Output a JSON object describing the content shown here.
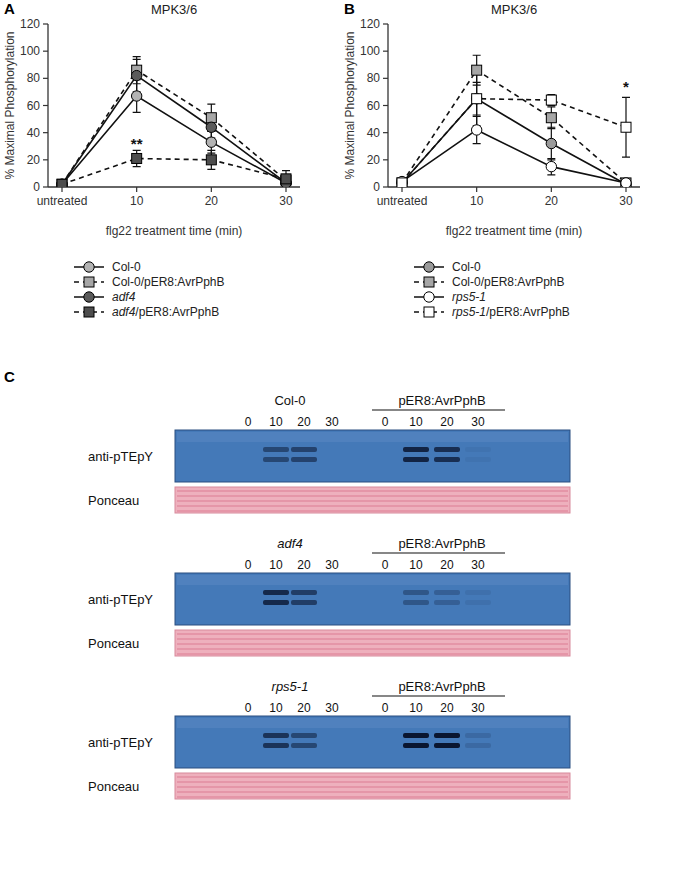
{
  "panels": [
    "A",
    "B",
    "C"
  ],
  "chart_data": [
    {
      "type": "line",
      "title": "MPK3/6",
      "x_label": "flg22 treatment time (min)",
      "y_label": "% Maximal Phosphorylation",
      "categories": [
        "untreated",
        "10",
        "20",
        "30"
      ],
      "ylim": [
        0,
        120
      ],
      "yticks": [
        0,
        20,
        40,
        60,
        80,
        100,
        120
      ],
      "grid": false,
      "legend": "bottom",
      "series": [
        {
          "name": "Col-0",
          "color": "#b3b3b3",
          "marker": "circle",
          "line_style": "solid",
          "values": [
            2,
            67,
            33,
            3
          ],
          "errors": [
            1,
            12,
            8,
            2
          ]
        },
        {
          "name": "Col-0/pER8:AvrPphB",
          "color": "#a6a6a6",
          "marker": "square",
          "line_style": "dashed",
          "values": [
            2,
            86,
            51,
            5
          ],
          "errors": [
            1,
            10,
            10,
            3
          ]
        },
        {
          "name": "adf4",
          "color": "#5a5a5a",
          "marker": "circle",
          "line_style": "solid",
          "values": [
            2,
            82,
            44,
            3
          ],
          "errors": [
            1,
            12,
            8,
            2
          ]
        },
        {
          "name": "adf4/pER8:AvrPphB",
          "color": "#4d4d4d",
          "marker": "square",
          "line_style": "dashed",
          "values": [
            2,
            21,
            20,
            6
          ],
          "errors": [
            1,
            6,
            7,
            6
          ]
        }
      ],
      "annotations": [
        {
          "text": "**",
          "category": "10",
          "y": 28
        }
      ]
    },
    {
      "type": "line",
      "title": "MPK3/6",
      "x_label": "flg22 treatment time (min)",
      "y_label": "% Maximal Phosphorylation",
      "categories": [
        "untreated",
        "10",
        "20",
        "30"
      ],
      "ylim": [
        0,
        120
      ],
      "yticks": [
        0,
        20,
        40,
        60,
        80,
        100,
        120
      ],
      "grid": false,
      "legend": "bottom",
      "series": [
        {
          "name": "Col-0",
          "color": "#9a9a9a",
          "marker": "circle",
          "line_style": "solid",
          "values": [
            3,
            65,
            32,
            2
          ],
          "errors": [
            2,
            12,
            12,
            2
          ]
        },
        {
          "name": "Col-0/pER8:AvrPphB",
          "color": "#a6a6a6",
          "marker": "square",
          "line_style": "dashed",
          "values": [
            3,
            86,
            51,
            3
          ],
          "errors": [
            2,
            11,
            8,
            2
          ]
        },
        {
          "name": "rps5-1",
          "color": "#ffffff",
          "marker": "circle",
          "line_style": "solid",
          "values": [
            4,
            42,
            15,
            3
          ],
          "errors": [
            2,
            10,
            6,
            2
          ]
        },
        {
          "name": "rps5-1/pER8:AvrPphB",
          "color": "#ffffff",
          "marker": "square",
          "line_style": "dashed",
          "values": [
            3,
            65,
            64,
            44
          ],
          "errors": [
            2,
            20,
            4,
            22
          ]
        }
      ],
      "annotations": [
        {
          "text": "*",
          "category": "30",
          "y": 70
        }
      ]
    }
  ],
  "blot": {
    "row_labels": [
      "anti-pTEpY",
      "Ponceau"
    ],
    "times": [
      "0",
      "10",
      "20",
      "30"
    ],
    "groups": [
      {
        "genotype": "Col-0",
        "transgene": "pER8:AvrPphB",
        "bands": [
          0,
          50,
          55,
          0,
          0,
          85,
          75,
          5
        ]
      },
      {
        "genotype": "adf4",
        "transgene": "pER8:AvrPphB",
        "bands": [
          0,
          80,
          60,
          0,
          0,
          35,
          25,
          8
        ]
      },
      {
        "genotype": "rps5-1",
        "transgene": "pER8:AvrPphB",
        "bands": [
          0,
          70,
          50,
          0,
          0,
          100,
          100,
          15
        ]
      }
    ]
  }
}
